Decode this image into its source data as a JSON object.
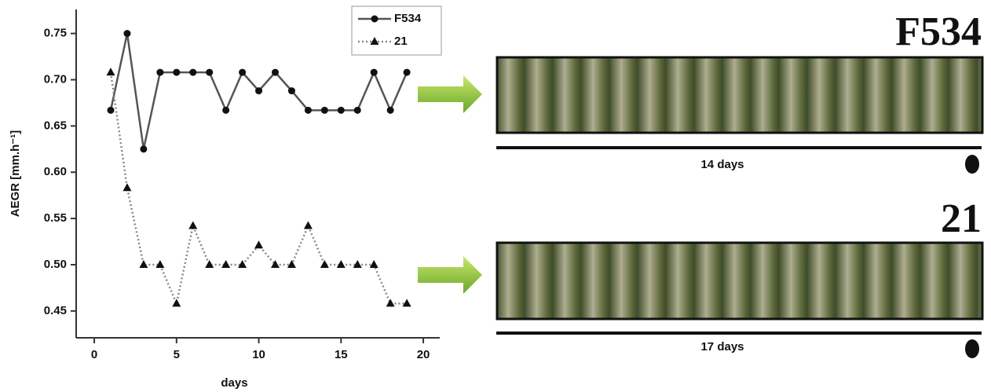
{
  "chart_data": {
    "type": "line",
    "xlabel": "days",
    "ylabel": "AEGR [mm.h⁻¹]",
    "x": [
      1,
      2,
      3,
      4,
      5,
      6,
      7,
      8,
      9,
      10,
      11,
      12,
      13,
      14,
      15,
      16,
      17,
      18,
      19
    ],
    "series": [
      {
        "name": "F534",
        "color": "#555555",
        "marker": "circle",
        "line_style": "solid",
        "values": [
          0.667,
          0.75,
          0.625,
          0.708,
          0.708,
          0.708,
          0.708,
          0.667,
          0.708,
          0.688,
          0.708,
          0.688,
          0.667,
          0.667,
          0.667,
          0.667,
          0.708,
          0.667,
          0.708
        ]
      },
      {
        "name": "21",
        "color": "#888888",
        "marker": "triangle",
        "line_style": "dotted",
        "values": [
          0.708,
          0.583,
          0.5,
          0.5,
          0.458,
          0.542,
          0.5,
          0.5,
          0.5,
          0.521,
          0.5,
          0.5,
          0.542,
          0.5,
          0.5,
          0.5,
          0.5,
          0.458,
          0.458
        ]
      }
    ],
    "xlim": [
      -1.1,
      21
    ],
    "xticks": [
      0,
      5,
      10,
      15,
      20
    ],
    "ylim": [
      0.421,
      0.776
    ],
    "yticks": [
      {
        "value": 0.45,
        "label": "0.45"
      },
      {
        "value": 0.5,
        "label": "0.50"
      },
      {
        "value": 0.55,
        "label": "0.55"
      },
      {
        "value": 0.6,
        "label": "0.60"
      },
      {
        "value": 0.65,
        "label": "0.65"
      },
      {
        "value": 0.7,
        "label": "0.70"
      },
      {
        "value": 0.75,
        "label": "0.75"
      }
    ],
    "legend": "upper right"
  },
  "panels": [
    {
      "label": "F534",
      "duration": "14 days"
    },
    {
      "label": "21",
      "duration": "17 days"
    }
  ]
}
